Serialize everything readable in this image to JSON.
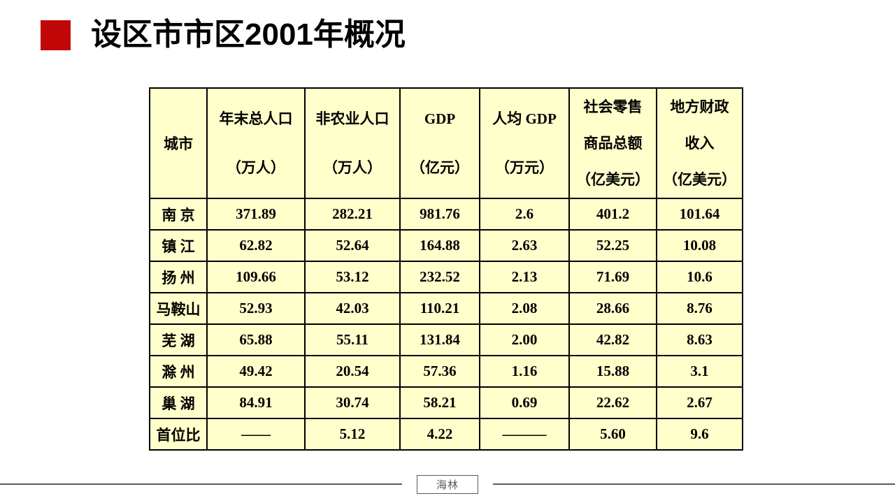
{
  "title": "设区市市区2001年概况",
  "colors": {
    "accent_red": "#C00606",
    "cell_background": "#FFFFCC",
    "table_border": "#000000",
    "footer_gray": "#5A5A5A"
  },
  "table": {
    "columns": [
      {
        "label": "城市"
      },
      {
        "label": "年末总人口\n（万人）"
      },
      {
        "label": "非农业人口\n（万人）"
      },
      {
        "label": "GDP\n（亿元）"
      },
      {
        "label": "人均 GDP\n（万元）"
      },
      {
        "label": "社会零售\n商品总额\n（亿美元）"
      },
      {
        "label": "地方财政\n收入\n（亿美元）"
      }
    ],
    "rows": [
      [
        "南 京",
        "371.89",
        "282.21",
        "981.76",
        "2.6",
        "401.2",
        "101.64"
      ],
      [
        "镇 江",
        "62.82",
        "52.64",
        "164.88",
        "2.63",
        "52.25",
        "10.08"
      ],
      [
        "扬 州",
        "109.66",
        "53.12",
        "232.52",
        "2.13",
        "71.69",
        "10.6"
      ],
      [
        "马鞍山",
        "52.93",
        "42.03",
        "110.21",
        "2.08",
        "28.66",
        "8.76"
      ],
      [
        "芜 湖",
        "65.88",
        "55.11",
        "131.84",
        "2.00",
        "42.82",
        "8.63"
      ],
      [
        "滁 州",
        "49.42",
        "20.54",
        "57.36",
        "1.16",
        "15.88",
        "3.1"
      ],
      [
        "巢 湖",
        "84.91",
        "30.74",
        "58.21",
        "0.69",
        "22.62",
        "2.67"
      ],
      [
        "首位比",
        "——",
        "5.12",
        "4.22",
        "———",
        "5.60",
        "9.6"
      ]
    ]
  },
  "footer": {
    "label": "海林"
  }
}
